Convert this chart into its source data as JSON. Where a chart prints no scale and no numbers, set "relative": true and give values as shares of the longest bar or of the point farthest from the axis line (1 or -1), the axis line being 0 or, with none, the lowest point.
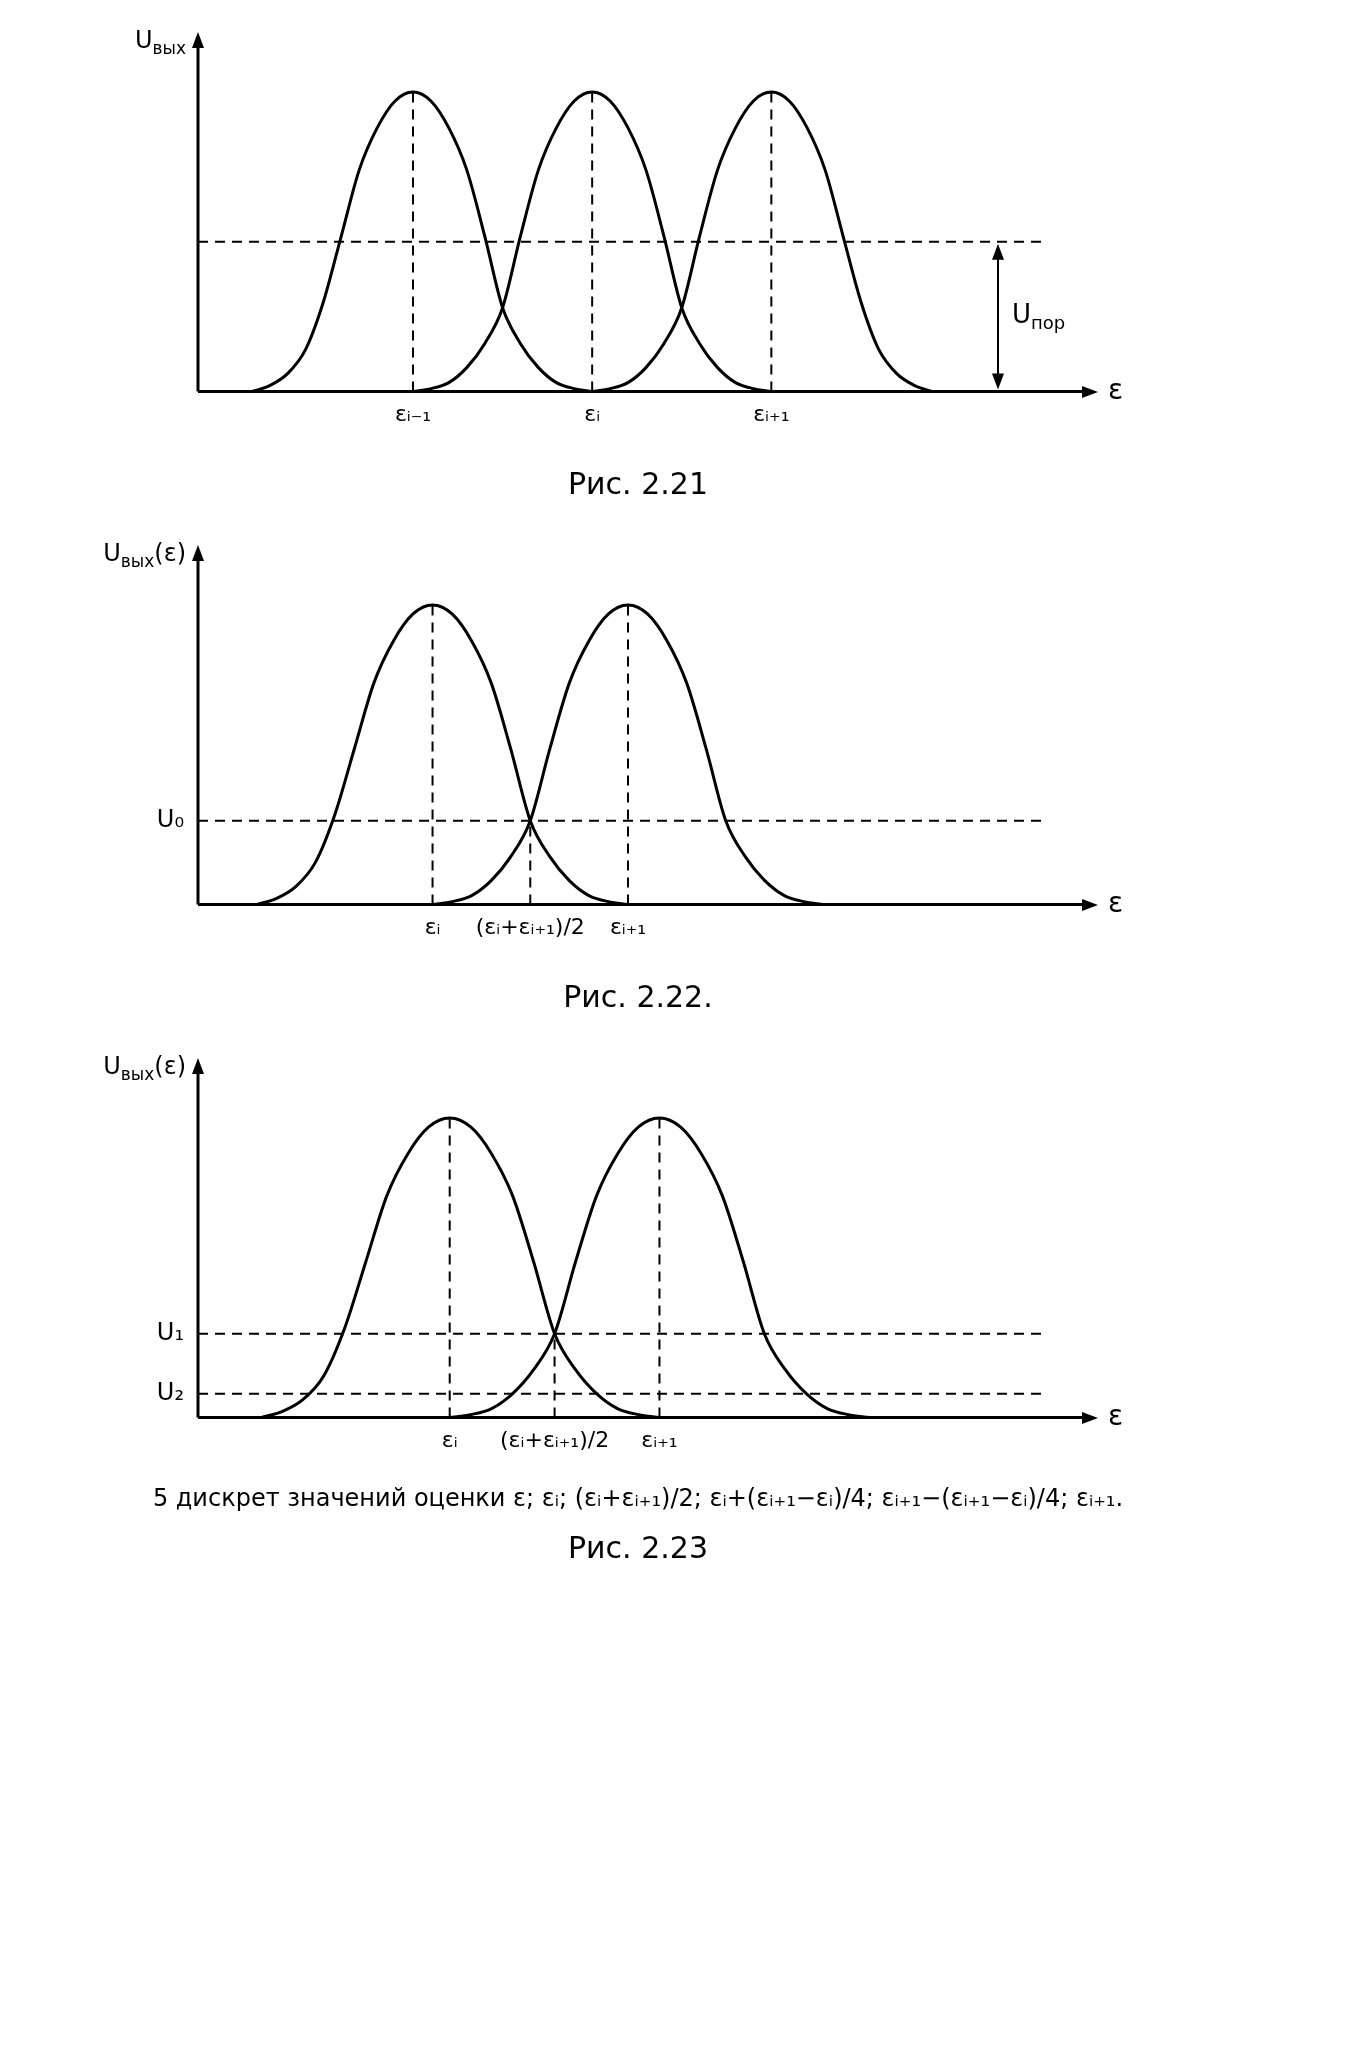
{
  "chart_data": [
    {
      "type": "line",
      "title": "Рис. 2.21",
      "xlabel": "ε",
      "ylabel": "U$_{вых}$",
      "relative": true,
      "tick_labels": "x",
      "line_style": "solid",
      "marker": "none",
      "categories": [
        null,
        null,
        null,
        null,
        null,
        null,
        null,
        null,
        null,
        null,
        null,
        null,
        "εᵢ₋₁",
        null,
        null,
        null,
        null,
        null,
        null,
        null,
        null,
        null,
        "εᵢ",
        null,
        null,
        null,
        null,
        null,
        null,
        null,
        null,
        null,
        "εᵢ₊₁",
        null,
        null,
        null,
        null,
        null,
        null,
        null,
        null,
        null,
        null,
        null,
        null,
        null,
        null,
        null,
        null
      ],
      "series": [
        {
          "color": "#000000",
          "values": [
            null,
            null,
            null,
            0,
            0.02,
            0.06,
            0.14,
            0.3,
            0.52,
            0.74,
            0.88,
            0.97,
            1,
            0.97,
            0.88,
            0.74,
            0.52,
            0.28,
            0.16,
            0.08,
            0.03,
            0.01,
            0,
            null,
            null,
            null,
            null,
            null,
            null,
            null,
            null,
            null,
            null,
            null,
            null,
            null,
            null,
            null,
            null,
            null,
            null,
            null,
            null,
            null,
            null,
            null,
            null,
            null,
            null
          ]
        },
        {
          "color": "#000000",
          "values": [
            null,
            null,
            null,
            null,
            null,
            null,
            null,
            null,
            null,
            null,
            null,
            null,
            0,
            0.01,
            0.03,
            0.08,
            0.16,
            0.28,
            0.52,
            0.74,
            0.88,
            0.97,
            1,
            0.97,
            0.88,
            0.74,
            0.52,
            0.28,
            0.16,
            0.08,
            0.03,
            0.01,
            0,
            null,
            null,
            null,
            null,
            null,
            null,
            null,
            null,
            null,
            null,
            null,
            null,
            null,
            null,
            null,
            null
          ]
        },
        {
          "color": "#000000",
          "values": [
            null,
            null,
            null,
            null,
            null,
            null,
            null,
            null,
            null,
            null,
            null,
            null,
            null,
            null,
            null,
            null,
            null,
            null,
            null,
            null,
            null,
            null,
            0,
            0.01,
            0.03,
            0.08,
            0.16,
            0.28,
            0.52,
            0.74,
            0.88,
            0.97,
            1,
            0.97,
            0.88,
            0.74,
            0.52,
            0.3,
            0.14,
            0.06,
            0.02,
            0,
            null,
            null,
            null,
            null,
            null,
            null,
            null
          ]
        }
      ],
      "ref_lines": [
        {
          "axis": "y",
          "value": 0.5,
          "line_style": "dashed"
        },
        {
          "axis": "x",
          "value": "εᵢ₋₁",
          "line_style": "dashed"
        },
        {
          "axis": "x",
          "value": "εᵢ",
          "line_style": "dashed"
        },
        {
          "axis": "x",
          "value": "εᵢ₊₁",
          "line_style": "dashed"
        }
      ],
      "annotations": [
        {
          "text": "U$_{пор}$",
          "y": 0.5
        }
      ]
    },
    {
      "type": "line",
      "title": "Рис. 2.22.",
      "xlabel": "ε",
      "ylabel": "U$_{вых}$(ε)",
      "relative": true,
      "tick_labels": "x",
      "line_style": "solid",
      "marker": "none",
      "categories": [
        null,
        null,
        null,
        null,
        null,
        null,
        null,
        null,
        null,
        null,
        null,
        null,
        "εᵢ",
        null,
        null,
        null,
        null,
        "(εᵢ+εᵢ₊₁)/2",
        null,
        null,
        null,
        null,
        "εᵢ₊₁",
        null,
        null,
        null,
        null,
        null,
        null,
        null,
        null,
        null,
        null,
        null,
        null,
        null,
        null,
        null,
        null,
        null,
        null,
        null,
        null,
        null,
        null
      ],
      "series": [
        {
          "color": "#000000",
          "values": [
            null,
            null,
            null,
            0,
            0.02,
            0.06,
            0.14,
            0.3,
            0.52,
            0.74,
            0.88,
            0.97,
            1,
            0.97,
            0.88,
            0.74,
            0.52,
            0.28,
            0.16,
            0.08,
            0.03,
            0.01,
            0,
            null,
            null,
            null,
            null,
            null,
            null,
            null,
            null,
            null,
            null,
            null,
            null,
            null,
            null,
            null,
            null,
            null,
            null,
            null,
            null,
            null,
            null
          ]
        },
        {
          "color": "#000000",
          "values": [
            null,
            null,
            null,
            null,
            null,
            null,
            null,
            null,
            null,
            null,
            null,
            null,
            0,
            0.01,
            0.03,
            0.08,
            0.16,
            0.28,
            0.52,
            0.74,
            0.88,
            0.97,
            1,
            0.97,
            0.88,
            0.74,
            0.52,
            0.28,
            0.16,
            0.08,
            0.03,
            0.01,
            0,
            null,
            null,
            null,
            null,
            null,
            null,
            null,
            null,
            null,
            null,
            null,
            null
          ]
        }
      ],
      "ref_lines": [
        {
          "axis": "y",
          "value": 0.28,
          "label": "U₀",
          "line_style": "dashed"
        },
        {
          "axis": "x",
          "value": "εᵢ",
          "line_style": "dashed"
        },
        {
          "axis": "x",
          "value": "(εᵢ+εᵢ₊₁)/2",
          "line_style": "dashed"
        },
        {
          "axis": "x",
          "value": "εᵢ₊₁",
          "line_style": "dashed"
        }
      ]
    },
    {
      "type": "line",
      "title": "Рис. 2.23",
      "xlabel": "ε",
      "ylabel": "U$_{вых}$(ε)",
      "relative": true,
      "tick_labels": "x",
      "line_style": "solid",
      "marker": "none",
      "categories": [
        null,
        null,
        null,
        null,
        null,
        null,
        null,
        null,
        null,
        null,
        null,
        null,
        "εᵢ",
        null,
        null,
        null,
        null,
        "(εᵢ+εᵢ₊₁)/2",
        null,
        null,
        null,
        null,
        "εᵢ₊₁",
        null,
        null,
        null,
        null,
        null,
        null,
        null,
        null,
        null,
        null,
        null,
        null,
        null,
        null,
        null,
        null,
        null,
        null,
        null
      ],
      "series": [
        {
          "color": "#000000",
          "values": [
            null,
            null,
            null,
            0,
            0.02,
            0.06,
            0.14,
            0.3,
            0.52,
            0.74,
            0.88,
            0.97,
            1,
            0.97,
            0.88,
            0.74,
            0.52,
            0.28,
            0.16,
            0.08,
            0.03,
            0.01,
            0,
            null,
            null,
            null,
            null,
            null,
            null,
            null,
            null,
            null,
            null,
            null,
            null,
            null,
            null,
            null,
            null,
            null,
            null,
            null
          ]
        },
        {
          "color": "#000000",
          "values": [
            null,
            null,
            null,
            null,
            null,
            null,
            null,
            null,
            null,
            null,
            null,
            null,
            0,
            0.01,
            0.03,
            0.08,
            0.16,
            0.28,
            0.52,
            0.74,
            0.88,
            0.97,
            1,
            0.97,
            0.88,
            0.74,
            0.52,
            0.28,
            0.16,
            0.08,
            0.03,
            0.01,
            0,
            null,
            null,
            null,
            null,
            null,
            null,
            null,
            null,
            null
          ]
        }
      ],
      "ref_lines": [
        {
          "axis": "y",
          "value": 0.28,
          "label": "U₁",
          "line_style": "dashed"
        },
        {
          "axis": "y",
          "value": 0.08,
          "label": "U₂",
          "line_style": "dashed"
        },
        {
          "axis": "x",
          "value": "εᵢ",
          "line_style": "dashed"
        },
        {
          "axis": "x",
          "value": "(εᵢ+εᵢ₊₁)/2",
          "line_style": "dashed"
        },
        {
          "axis": "x",
          "value": "εᵢ₊₁",
          "line_style": "dashed"
        }
      ],
      "annotations": [
        "5 дискрет значений оценки ε; εᵢ; (εᵢ+εᵢ₊₁)/2; εᵢ+(εᵢ₊₁−εᵢ)/4; εᵢ₊₁−(εᵢ₊₁−εᵢ)/4; εᵢ₊₁."
      ]
    }
  ]
}
